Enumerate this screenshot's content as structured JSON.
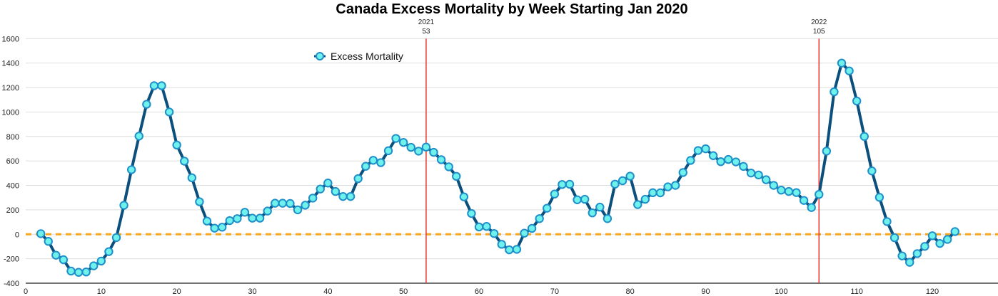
{
  "chart_data": {
    "type": "line",
    "title": "Canada Excess Mortality by Week Starting Jan 2020",
    "xlabel": "",
    "ylabel": "",
    "xlim": [
      0,
      128
    ],
    "ylim": [
      -400,
      1600
    ],
    "xticks": [
      0,
      10,
      20,
      30,
      40,
      50,
      60,
      70,
      80,
      90,
      100,
      110,
      120
    ],
    "yticks": [
      -400,
      -200,
      0,
      200,
      400,
      600,
      800,
      1000,
      1200,
      1400,
      1600
    ],
    "grid": true,
    "legend": {
      "position": "top-left",
      "entries": [
        "Excess Mortality"
      ]
    },
    "colors": {
      "line": "#0b4f7c",
      "marker_fill": "#6ff2ec",
      "marker_stroke": "#1f8fc9",
      "zero_line": "#f5a623",
      "vline": "#e53935",
      "grid": "#dddddd",
      "axis": "#444444"
    },
    "reference_lines": [
      {
        "type": "horizontal",
        "y": 0,
        "style": "dashed"
      },
      {
        "type": "vertical",
        "x": 53,
        "label_top": "2021",
        "label_bottom": "53"
      },
      {
        "type": "vertical",
        "x": 105,
        "label_top": "2022",
        "label_bottom": "105"
      }
    ],
    "series": [
      {
        "name": "Excess Mortality",
        "x": [
          2,
          3,
          4,
          5,
          6,
          7,
          8,
          9,
          10,
          11,
          12,
          13,
          14,
          15,
          16,
          17,
          18,
          19,
          20,
          21,
          22,
          23,
          24,
          25,
          26,
          27,
          28,
          29,
          30,
          31,
          32,
          33,
          34,
          35,
          36,
          37,
          38,
          39,
          40,
          41,
          42,
          43,
          44,
          45,
          46,
          47,
          48,
          49,
          50,
          51,
          52,
          53,
          54,
          55,
          56,
          57,
          58,
          59,
          60,
          61,
          62,
          63,
          64,
          65,
          66,
          67,
          68,
          69,
          70,
          71,
          72,
          73,
          74,
          75,
          76,
          77,
          78,
          79,
          80,
          81,
          82,
          83,
          84,
          85,
          86,
          87,
          88,
          89,
          90,
          91,
          92,
          93,
          94,
          95,
          96,
          97,
          98,
          99,
          100,
          101,
          102,
          103,
          104,
          105,
          106,
          107,
          108,
          109,
          110,
          111,
          112,
          113,
          114,
          115,
          116,
          117,
          118,
          119,
          120,
          121,
          122,
          123
        ],
        "values": [
          5,
          -58,
          -171,
          -208,
          -301,
          -311,
          -308,
          -258,
          -219,
          -142,
          -27,
          237,
          528,
          803,
          1063,
          1215,
          1215,
          1000,
          730,
          598,
          462,
          266,
          108,
          50,
          58,
          112,
          128,
          180,
          132,
          132,
          190,
          254,
          254,
          252,
          200,
          238,
          296,
          370,
          419,
          350,
          309,
          309,
          455,
          556,
          605,
          586,
          683,
          784,
          751,
          711,
          680,
          713,
          670,
          610,
          552,
          474,
          306,
          170,
          60,
          64,
          6,
          -82,
          -127,
          -123,
          9,
          48,
          128,
          213,
          329,
          407,
          409,
          282,
          286,
          175,
          222,
          128,
          410,
          438,
          475,
          243,
          286,
          340,
          339,
          388,
          400,
          505,
          604,
          685,
          699,
          643,
          594,
          612,
          592,
          555,
          501,
          485,
          446,
          400,
          361,
          350,
          341,
          277,
          219,
          326,
          680,
          1165,
          1400,
          1336,
          1090,
          800,
          518,
          302,
          104,
          -28,
          -177,
          -229,
          -158,
          -99,
          -12,
          -75,
          -42,
          22
        ]
      }
    ]
  }
}
